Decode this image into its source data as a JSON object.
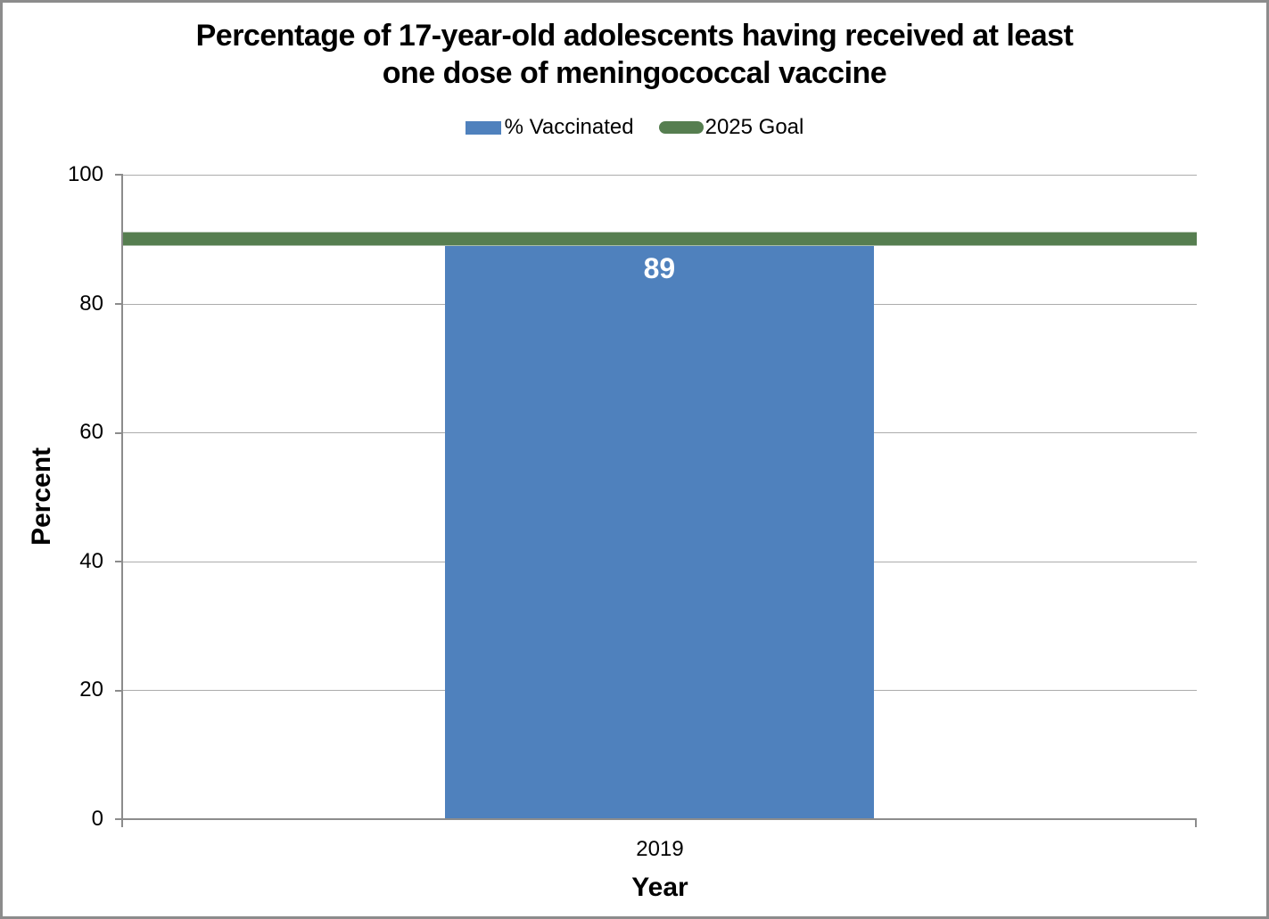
{
  "title": {
    "line1": "Percentage of 17-year-old adolescents having received at least",
    "line2": "one dose of meningococcal vaccine"
  },
  "legend": {
    "items": [
      {
        "label": "% Vaccinated",
        "swatch": "bar-square",
        "color": "#4f81bd"
      },
      {
        "label": "2025 Goal",
        "swatch": "line-capsule",
        "color": "#567e50"
      }
    ]
  },
  "chart_data": {
    "type": "bar",
    "title": "Percentage of 17-year-old adolescents having received at least one dose of meningococcal vaccine",
    "categories": [
      "2019"
    ],
    "series": [
      {
        "name": "% Vaccinated",
        "type": "bar",
        "values": [
          89
        ],
        "color": "#4f81bd"
      },
      {
        "name": "2025 Goal",
        "type": "line",
        "values": [
          90
        ],
        "color": "#567e50"
      }
    ],
    "data_labels": [
      "89"
    ],
    "xlabel": "Year",
    "ylabel": "Percent",
    "ylim": [
      0,
      100
    ],
    "y_ticks": [
      0,
      20,
      40,
      60,
      80,
      100
    ],
    "grid": true,
    "legend_position": "top",
    "colors": {
      "bar": "#4f81bd",
      "goal_line": "#567e50",
      "gridline": "#acacac",
      "axis": "#8c8c8c",
      "bar_label_text": "#ffffff"
    }
  }
}
